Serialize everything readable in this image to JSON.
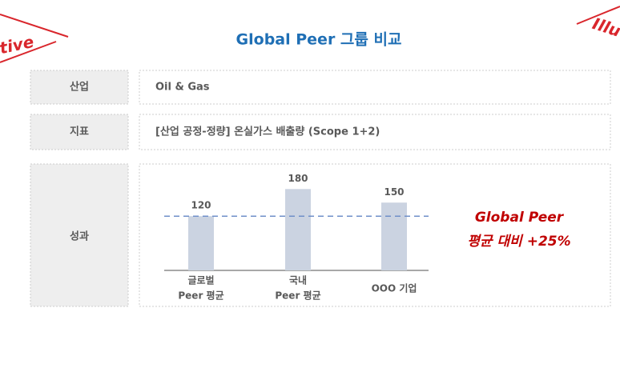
{
  "stamp_left": "tive",
  "stamp_right": "Illu",
  "title": "Global Peer 그룹 비교",
  "rows": [
    [
      "산업",
      "Oil & Gas"
    ],
    [
      "지표",
      "[산업 공정-정량] 온실가스 배출량 (Scope 1+2)"
    ],
    [
      "성과"
    ]
  ],
  "chart_data": {
    "type": "bar",
    "categories": [
      [
        "글로벌",
        "Peer 평균"
      ],
      [
        "국내",
        "Peer 평균"
      ],
      [
        "OOO 기업"
      ]
    ],
    "values": [
      120,
      180,
      150
    ],
    "color": "#cbd3e1",
    "ylim": [
      0,
      200
    ],
    "reference_line": 120,
    "reference_color": "#6f8fc9",
    "annotation": [
      "Global Peer",
      "평균 대비 +25%"
    ],
    "annotation_color": "#c00000"
  }
}
